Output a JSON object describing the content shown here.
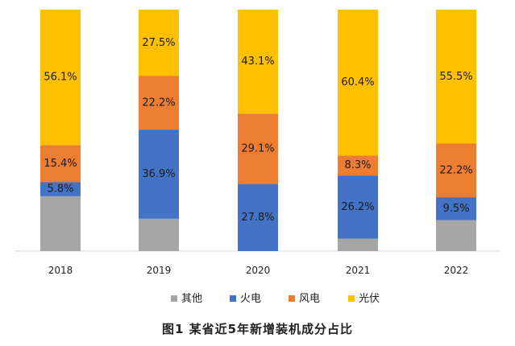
{
  "chart_data": {
    "type": "bar",
    "stacked": true,
    "percent_stacked": true,
    "categories": [
      "2018",
      "2019",
      "2020",
      "2021",
      "2022"
    ],
    "series": [
      {
        "name": "其他",
        "color": "#a6a6a6",
        "values": [
          22.7,
          13.4,
          0.0,
          5.1,
          12.8
        ],
        "labels": [
          null,
          null,
          null,
          null,
          null
        ]
      },
      {
        "name": "火电",
        "color": "#4472c4",
        "values": [
          5.8,
          36.9,
          27.8,
          26.2,
          9.5
        ],
        "labels": [
          "5.8%",
          "36.9%",
          "27.8%",
          "26.2%",
          "9.5%"
        ]
      },
      {
        "name": "风电",
        "color": "#ed7d31",
        "values": [
          15.4,
          22.2,
          29.1,
          8.3,
          22.2
        ],
        "labels": [
          "15.4%",
          "22.2%",
          "29.1%",
          "8.3%",
          "22.2%"
        ]
      },
      {
        "name": "光伏",
        "color": "#ffc000",
        "values": [
          56.1,
          27.5,
          43.1,
          60.4,
          55.5
        ],
        "labels": [
          "56.1%",
          "27.5%",
          "43.1%",
          "60.4%",
          "55.5%"
        ]
      }
    ],
    "ylim": [
      0,
      100
    ],
    "legend_position": "bottom",
    "title": "图1   某省近5年新增装机成分占比"
  }
}
